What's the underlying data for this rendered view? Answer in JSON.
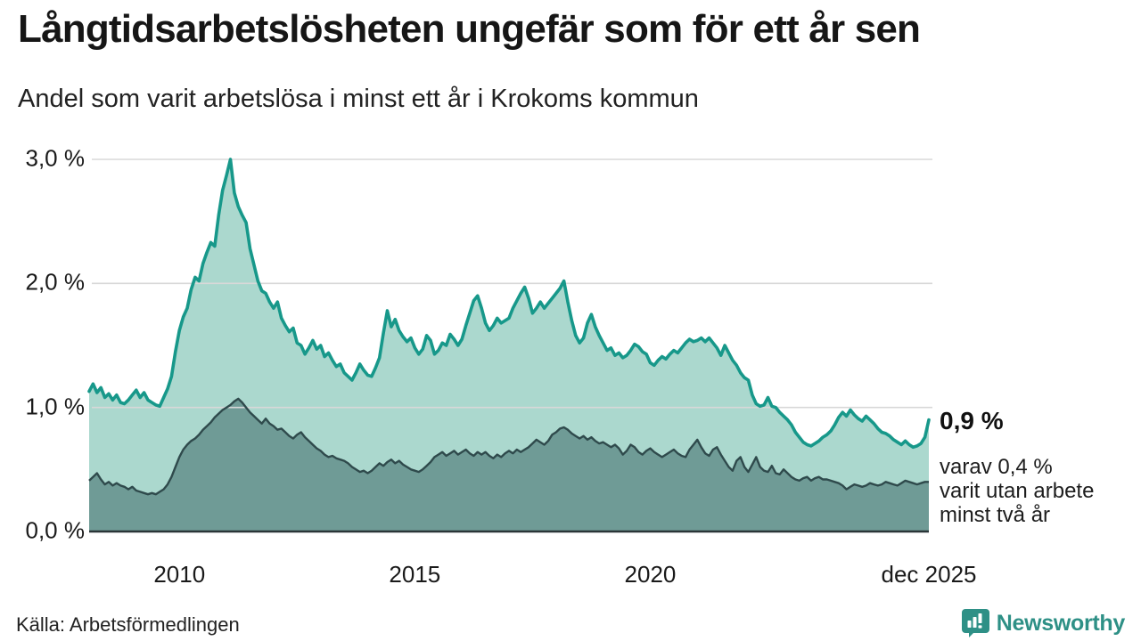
{
  "header": {
    "title": "Långtidsarbetslösheten ungefär som för ett år sen",
    "subtitle": "Andel som varit arbetslösa i minst ett år i Krokoms kommun"
  },
  "chart_data": {
    "type": "area",
    "title": "Långtidsarbetslösheten ungefär som för ett år sen",
    "subtitle": "Andel som varit arbetslösa i minst ett år i Krokoms kommun",
    "unit": "%",
    "frequency": "monthly",
    "x_start": "2008-02",
    "x_end": "2025-12",
    "ylim": [
      0,
      3.05
    ],
    "grid": true,
    "grid_values": [
      1,
      2,
      3
    ],
    "legend_position": "none",
    "colors": {
      "line_total": "#17988a",
      "fill_total": "#abd8ce",
      "line_two_years": "#2f4a4c",
      "fill_two_years": "#6f9b96",
      "baseline": "#2a3538",
      "gridline": "#d8d8d8"
    },
    "yticks": [
      {
        "label": "0,0 %",
        "value": 0
      },
      {
        "label": "1,0 %",
        "value": 1
      },
      {
        "label": "2,0 %",
        "value": 2
      },
      {
        "label": "3,0 %",
        "value": 3
      }
    ],
    "xticks": [
      {
        "label": "2010",
        "index": 23
      },
      {
        "label": "2015",
        "index": 83
      },
      {
        "label": "2020",
        "index": 143
      },
      {
        "label": "dec 2025",
        "index": 214
      }
    ],
    "series": [
      {
        "name": "Arbetslösa minst ett år",
        "values": [
          1.13,
          1.19,
          1.12,
          1.16,
          1.08,
          1.11,
          1.06,
          1.1,
          1.04,
          1.03,
          1.06,
          1.1,
          1.14,
          1.08,
          1.12,
          1.06,
          1.04,
          1.02,
          1.01,
          1.08,
          1.15,
          1.25,
          1.45,
          1.62,
          1.73,
          1.8,
          1.95,
          2.05,
          2.02,
          2.16,
          2.25,
          2.33,
          2.3,
          2.55,
          2.75,
          2.87,
          3.0,
          2.73,
          2.62,
          2.55,
          2.49,
          2.28,
          2.15,
          2.02,
          1.94,
          1.92,
          1.85,
          1.8,
          1.85,
          1.72,
          1.66,
          1.61,
          1.64,
          1.52,
          1.5,
          1.43,
          1.48,
          1.54,
          1.47,
          1.5,
          1.41,
          1.44,
          1.38,
          1.33,
          1.35,
          1.28,
          1.25,
          1.22,
          1.28,
          1.35,
          1.3,
          1.26,
          1.25,
          1.32,
          1.4,
          1.6,
          1.78,
          1.65,
          1.71,
          1.62,
          1.57,
          1.53,
          1.56,
          1.48,
          1.43,
          1.47,
          1.58,
          1.54,
          1.43,
          1.46,
          1.52,
          1.5,
          1.59,
          1.55,
          1.5,
          1.55,
          1.66,
          1.76,
          1.86,
          1.9,
          1.8,
          1.68,
          1.62,
          1.66,
          1.72,
          1.68,
          1.7,
          1.72,
          1.8,
          1.86,
          1.92,
          1.97,
          1.88,
          1.76,
          1.8,
          1.85,
          1.8,
          1.84,
          1.88,
          1.92,
          1.96,
          2.02,
          1.85,
          1.7,
          1.58,
          1.52,
          1.56,
          1.68,
          1.75,
          1.65,
          1.58,
          1.52,
          1.46,
          1.48,
          1.42,
          1.44,
          1.4,
          1.42,
          1.46,
          1.51,
          1.49,
          1.45,
          1.43,
          1.36,
          1.34,
          1.38,
          1.41,
          1.39,
          1.43,
          1.46,
          1.44,
          1.48,
          1.52,
          1.55,
          1.53,
          1.54,
          1.56,
          1.53,
          1.56,
          1.52,
          1.48,
          1.42,
          1.5,
          1.44,
          1.38,
          1.34,
          1.28,
          1.24,
          1.22,
          1.1,
          1.03,
          1.01,
          1.02,
          1.08,
          1.01,
          1.0,
          0.96,
          0.93,
          0.9,
          0.86,
          0.8,
          0.76,
          0.72,
          0.7,
          0.69,
          0.71,
          0.73,
          0.76,
          0.78,
          0.81,
          0.86,
          0.92,
          0.96,
          0.93,
          0.98,
          0.94,
          0.91,
          0.89,
          0.93,
          0.9,
          0.87,
          0.83,
          0.8,
          0.79,
          0.77,
          0.74,
          0.72,
          0.7,
          0.73,
          0.7,
          0.68,
          0.69,
          0.71,
          0.76,
          0.9
        ]
      },
      {
        "name": "Varav utan arbete minst två år",
        "values": [
          0.41,
          0.44,
          0.47,
          0.42,
          0.38,
          0.4,
          0.37,
          0.39,
          0.37,
          0.36,
          0.34,
          0.36,
          0.33,
          0.32,
          0.31,
          0.3,
          0.31,
          0.3,
          0.32,
          0.34,
          0.38,
          0.44,
          0.52,
          0.6,
          0.66,
          0.7,
          0.73,
          0.75,
          0.78,
          0.82,
          0.85,
          0.88,
          0.92,
          0.95,
          0.98,
          1.0,
          1.02,
          1.05,
          1.07,
          1.04,
          1.0,
          0.96,
          0.93,
          0.9,
          0.87,
          0.91,
          0.87,
          0.85,
          0.82,
          0.83,
          0.8,
          0.77,
          0.75,
          0.78,
          0.8,
          0.76,
          0.73,
          0.7,
          0.67,
          0.65,
          0.62,
          0.6,
          0.61,
          0.59,
          0.58,
          0.57,
          0.55,
          0.52,
          0.5,
          0.48,
          0.49,
          0.47,
          0.49,
          0.52,
          0.55,
          0.53,
          0.56,
          0.58,
          0.55,
          0.57,
          0.54,
          0.52,
          0.5,
          0.49,
          0.48,
          0.5,
          0.53,
          0.56,
          0.6,
          0.62,
          0.64,
          0.61,
          0.63,
          0.65,
          0.62,
          0.64,
          0.66,
          0.63,
          0.61,
          0.64,
          0.62,
          0.64,
          0.61,
          0.59,
          0.62,
          0.6,
          0.63,
          0.65,
          0.63,
          0.66,
          0.64,
          0.66,
          0.68,
          0.71,
          0.74,
          0.72,
          0.7,
          0.73,
          0.78,
          0.8,
          0.83,
          0.84,
          0.82,
          0.79,
          0.77,
          0.75,
          0.77,
          0.74,
          0.76,
          0.73,
          0.71,
          0.72,
          0.7,
          0.68,
          0.7,
          0.67,
          0.62,
          0.65,
          0.7,
          0.68,
          0.64,
          0.62,
          0.65,
          0.67,
          0.64,
          0.62,
          0.6,
          0.62,
          0.64,
          0.66,
          0.63,
          0.61,
          0.6,
          0.66,
          0.7,
          0.74,
          0.68,
          0.63,
          0.61,
          0.66,
          0.68,
          0.62,
          0.57,
          0.52,
          0.49,
          0.57,
          0.6,
          0.52,
          0.48,
          0.54,
          0.6,
          0.52,
          0.49,
          0.48,
          0.53,
          0.47,
          0.46,
          0.5,
          0.47,
          0.44,
          0.42,
          0.41,
          0.43,
          0.44,
          0.41,
          0.43,
          0.44,
          0.42,
          0.42,
          0.41,
          0.4,
          0.39,
          0.37,
          0.34,
          0.36,
          0.38,
          0.37,
          0.36,
          0.37,
          0.39,
          0.38,
          0.37,
          0.38,
          0.4,
          0.39,
          0.38,
          0.37,
          0.39,
          0.41,
          0.4,
          0.39,
          0.38,
          0.39,
          0.4,
          0.4
        ]
      }
    ],
    "annotations": {
      "latest_total": "0,9 %",
      "detail_lines": [
        "varav 0,4 %",
        "varit utan arbete",
        "minst två år"
      ]
    }
  },
  "footer": {
    "source": "Källa: Arbetsförmedlingen",
    "logo_text": "Newsworthy"
  }
}
